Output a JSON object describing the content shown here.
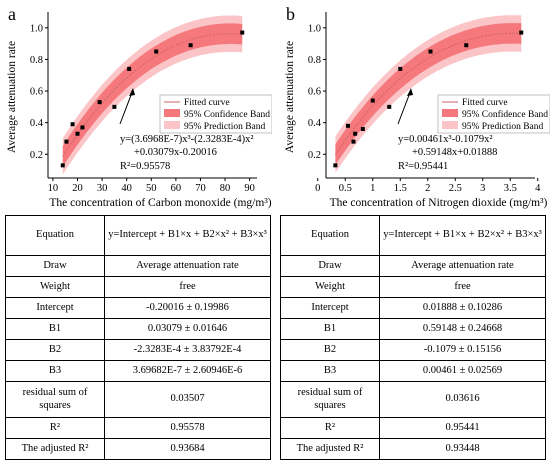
{
  "colors": {
    "confidence": "#f4787c",
    "prediction": "#fbc4c6",
    "curve": "#c86464",
    "points": "#000000"
  },
  "chart_data": [
    {
      "type": "scatter",
      "panel_label": "a",
      "xlabel": "The concentration of Carbon monoxide (mg/m³)",
      "ylabel": "Average attenuation rate",
      "xlim": [
        8,
        93
      ],
      "ylim": [
        0.05,
        1.1
      ],
      "xticks": [
        10,
        20,
        30,
        40,
        50,
        60,
        70,
        80,
        90
      ],
      "yticks": [
        0.2,
        0.4,
        0.6,
        0.8,
        1.0
      ],
      "ytick_labels": [
        "0.2",
        "0.4",
        "0.6",
        "0.8",
        "1.0"
      ],
      "coef": {
        "b0": -0.20016,
        "b1": 0.03079,
        "b2": -0.00023283,
        "b3": 3.6968e-07
      },
      "conf_halfwidth": 0.065,
      "pred_halfwidth": 0.115,
      "points": {
        "x": [
          14,
          15.5,
          18,
          20,
          22,
          29,
          35,
          41,
          52,
          66,
          87
        ],
        "y": [
          0.13,
          0.28,
          0.39,
          0.33,
          0.37,
          0.53,
          0.5,
          0.74,
          0.85,
          0.89,
          0.97
        ]
      },
      "legend": [
        "Fitted curve",
        "95% Confidence Band",
        "95% Prediction Band"
      ],
      "equation": [
        "y=(3.6968E-7)x³-(2.3283E-4)x²",
        "+0.03079x-0.20016",
        "R²=0.95578"
      ]
    },
    {
      "type": "scatter",
      "panel_label": "b",
      "xlabel": "The concentration of Nitrogen dioxide (mg/m³)",
      "ylabel": "Average attenuation rate",
      "xlim": [
        0.15,
        3.95
      ],
      "ylim": [
        0.05,
        1.1
      ],
      "xticks": [
        0.0,
        0.5,
        1.0,
        1.5,
        2.0,
        2.5,
        3.0,
        3.5,
        4.0
      ],
      "yticks": [
        0.2,
        0.4,
        0.6,
        0.8,
        1.0
      ],
      "ytick_labels": [
        "0.2",
        "0.4",
        "0.6",
        "0.8",
        "1.0"
      ],
      "coef": {
        "b0": 0.01888,
        "b1": 0.59148,
        "b2": -0.1079,
        "b3": 0.00461
      },
      "conf_halfwidth": 0.065,
      "pred_halfwidth": 0.115,
      "points": {
        "x": [
          0.32,
          0.55,
          0.65,
          0.68,
          0.82,
          1.0,
          1.3,
          1.5,
          2.05,
          2.7,
          3.7
        ],
        "y": [
          0.13,
          0.38,
          0.28,
          0.33,
          0.36,
          0.54,
          0.5,
          0.74,
          0.85,
          0.89,
          0.97
        ]
      },
      "legend": [
        "Fitted curve",
        "95% Confidence Band",
        "95% Prediction Band"
      ],
      "equation": [
        "y=0.00461x³-0.1079x²",
        "+0.59148x+0.01888",
        "R²=0.95441"
      ]
    }
  ],
  "tables": [
    {
      "rows": [
        {
          "label": "Equation",
          "value": "y=Intercept + B1×x + B2×x² + B3×x³"
        },
        {
          "label": "Draw",
          "value": "Average attenuation rate"
        },
        {
          "label": "Weight",
          "value": "free"
        },
        {
          "label": "Intercept",
          "value": "-0.20016 ± 0.19986"
        },
        {
          "label": "B1",
          "value": "0.03079 ± 0.01646"
        },
        {
          "label": "B2",
          "value": "-2.3283E-4 ± 3.83792E-4"
        },
        {
          "label": "B3",
          "value": "3.69682E-7 ± 2.60946E-6"
        },
        {
          "label": "residual sum of squares",
          "value": "0.03507"
        },
        {
          "label": "R²",
          "value": "0.95578"
        },
        {
          "label": "The adjusted R²",
          "value": "0.93684"
        }
      ]
    },
    {
      "rows": [
        {
          "label": "Equation",
          "value": "y=Intercept + B1×x + B2×x² + B3×x³"
        },
        {
          "label": "Draw",
          "value": "Average attenuation rate"
        },
        {
          "label": "Weight",
          "value": "free"
        },
        {
          "label": "Intercept",
          "value": "0.01888 ± 0.10286"
        },
        {
          "label": "B1",
          "value": "0.59148 ± 0.24668"
        },
        {
          "label": "B2",
          "value": "-0.1079 ± 0.15156"
        },
        {
          "label": "B3",
          "value": "0.00461 ± 0.02569"
        },
        {
          "label": "residual sum of squares",
          "value": "0.03616"
        },
        {
          "label": "R²",
          "value": "0.95441"
        },
        {
          "label": "The adjusted R²",
          "value": "0.93448"
        }
      ]
    }
  ]
}
